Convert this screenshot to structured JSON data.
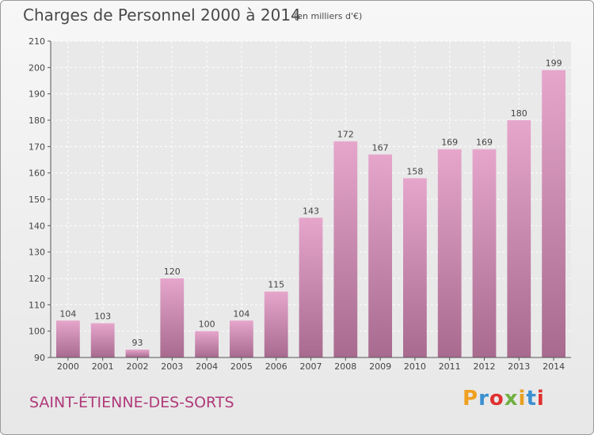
{
  "header": {
    "title": "Charges de Personnel 2000 à 2014",
    "subtitle": "(en milliers d'€)"
  },
  "footer": {
    "commune": "SAINT-ÉTIENNE-DES-SORTS",
    "logo_text": "Proxiti"
  },
  "colors": {
    "bar_top": "#e6a6cc",
    "bar_bottom": "#a86a8e",
    "commune_text": "#b03a7a",
    "logo_letters": [
      "#f0a020",
      "#3a8fd0",
      "#e03030",
      "#70b040",
      "#e8a020",
      "#3a8fd0",
      "#e03030"
    ]
  },
  "chart_data": {
    "type": "bar",
    "title": "Charges de Personnel 2000 à 2014",
    "subtitle": "(en milliers d'€)",
    "categories": [
      "2000",
      "2001",
      "2002",
      "2003",
      "2004",
      "2005",
      "2006",
      "2007",
      "2008",
      "2009",
      "2010",
      "2011",
      "2012",
      "2013",
      "2014"
    ],
    "values": [
      104,
      103,
      93,
      120,
      100,
      104,
      115,
      143,
      172,
      167,
      158,
      169,
      169,
      180,
      199
    ],
    "xlabel": "",
    "ylabel": "",
    "ylim": [
      90,
      210
    ],
    "yticks": [
      90,
      100,
      110,
      120,
      130,
      140,
      150,
      160,
      170,
      180,
      190,
      200,
      210
    ],
    "grid": true
  }
}
